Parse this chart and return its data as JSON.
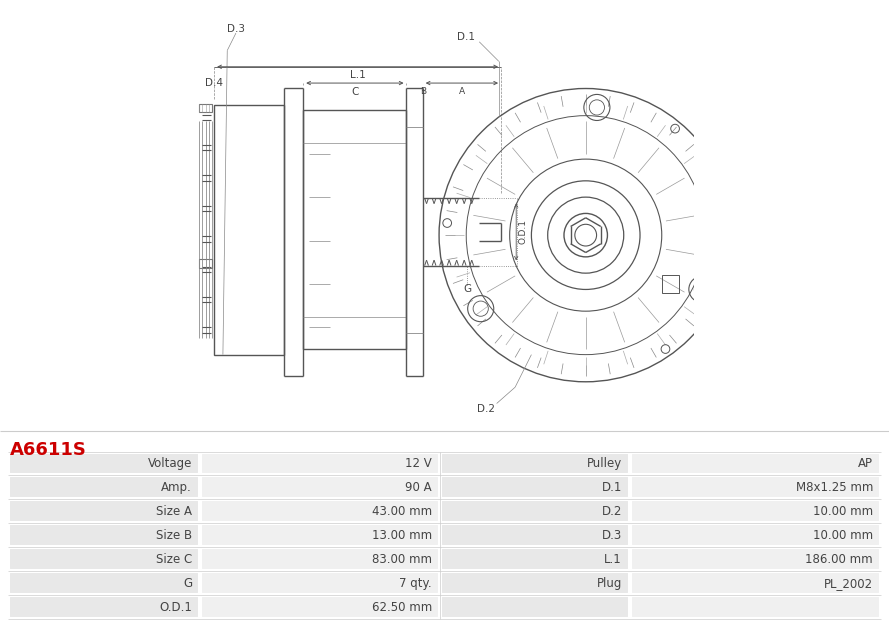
{
  "title": "A6611S",
  "title_color": "#cc0000",
  "table_row_bg_odd": "#e8e8e8",
  "table_row_bg_even": "#f0f0f0",
  "table_text_color": "#444444",
  "rows": [
    [
      "Voltage",
      "12 V",
      "Pulley",
      "AP"
    ],
    [
      "Amp.",
      "90 A",
      "D.1",
      "M8x1.25 mm"
    ],
    [
      "Size A",
      "43.00 mm",
      "D.2",
      "10.00 mm"
    ],
    [
      "Size B",
      "13.00 mm",
      "D.3",
      "10.00 mm"
    ],
    [
      "Size C",
      "83.00 mm",
      "L.1",
      "186.00 mm"
    ],
    [
      "G",
      "7 qty.",
      "Plug",
      "PL_2002"
    ],
    [
      "O.D.1",
      "62.50 mm",
      "",
      ""
    ]
  ],
  "line_color": "#555555",
  "label_color": "#444444",
  "dim_color": "#555555"
}
